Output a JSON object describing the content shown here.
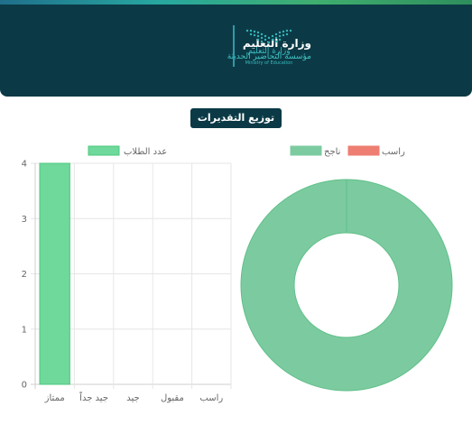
{
  "header": {
    "ministry_name": "وزارة التعليم",
    "school_name": "مؤسسة التحاضير الحديثة",
    "logo_ar": "وزارة التعليم",
    "logo_en": "Ministry of Education"
  },
  "page_title": "توزيع التقديرات",
  "colors": {
    "header_bg": "#0b3a46",
    "bar_fill": "#6fd89b",
    "bar_stroke": "#4cc97f",
    "pass": "#7ccba0",
    "fail": "#ee7e72"
  },
  "chart_data": [
    {
      "type": "bar",
      "categories": [
        "ممتاز",
        "جيد جداً",
        "جيد",
        "مقبول",
        "راسب"
      ],
      "series": [
        {
          "name": "عدد الطلاب",
          "values": [
            4,
            0,
            0,
            0,
            0
          ]
        }
      ],
      "ylim": [
        0,
        4
      ],
      "yticks": [
        0,
        1,
        2,
        3,
        4
      ],
      "grid": true,
      "legend": "top"
    },
    {
      "type": "pie",
      "donut": true,
      "labels": [
        "ناجح",
        "راسب"
      ],
      "values": [
        1,
        0
      ],
      "legend": "top"
    }
  ]
}
